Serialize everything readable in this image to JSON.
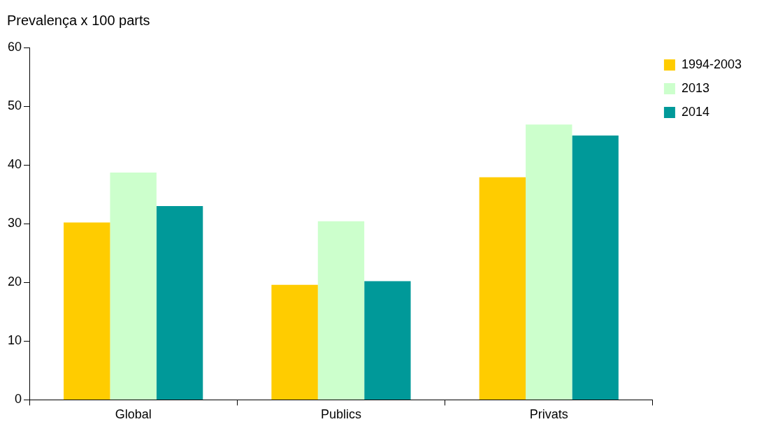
{
  "chart_data": {
    "type": "bar",
    "ylabel": "Prevalença x 100 parts",
    "categories": [
      "Global",
      "Publics",
      "Privats"
    ],
    "series": [
      {
        "name": "1994-2003",
        "color": "#ffcc00",
        "values": [
          30.2,
          19.6,
          37.9
        ]
      },
      {
        "name": "2013",
        "color": "#ccffcc",
        "values": [
          38.7,
          30.4,
          46.9
        ]
      },
      {
        "name": "2014",
        "color": "#009999",
        "values": [
          33.0,
          20.2,
          45.0
        ]
      }
    ],
    "ylim": [
      0,
      60
    ],
    "yticks": [
      0,
      10,
      20,
      30,
      40,
      50,
      60
    ],
    "grid": false,
    "legend": "top right"
  }
}
